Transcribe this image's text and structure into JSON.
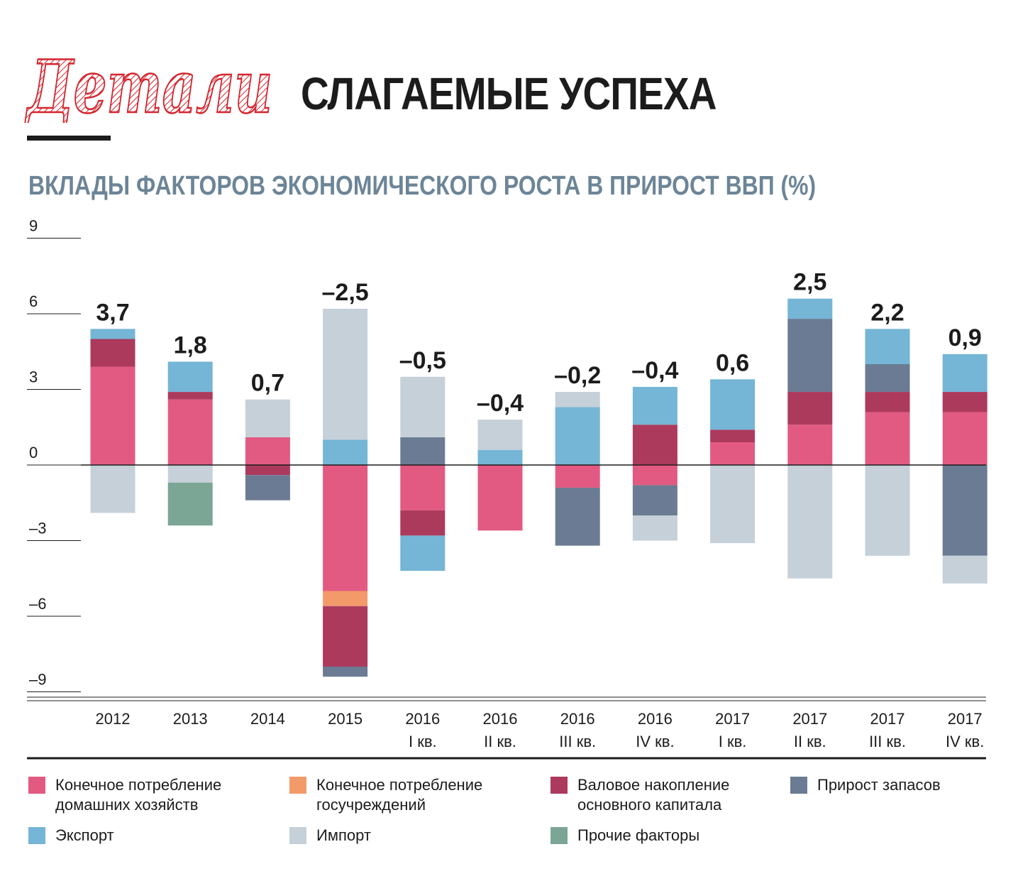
{
  "header": {
    "logo_text": "Детали",
    "title": "СЛАГАЕМЫЕ УСПЕХА",
    "subtitle": "ВКЛАДЫ ФАКТОРОВ ЭКОНОМИЧЕСКОГО РОСТА В ПРИРОСТ ВВП (%)"
  },
  "colors": {
    "logo_red": "#d4262f",
    "title": "#1c1c1c",
    "subtitle": "#6c8597"
  },
  "chart_data": {
    "type": "bar",
    "stacked": true,
    "title": "ВКЛАДЫ ФАКТОРОВ ЭКОНОМИЧЕСКОГО РОСТА В ПРИРОСТ ВВП (%)",
    "ylim": [
      -9.5,
      9
    ],
    "yticks": [
      9,
      6,
      3,
      0,
      -3,
      -6,
      -9
    ],
    "ytick_labels": [
      "9",
      "6",
      "3",
      "0",
      "–3",
      "–6",
      "–9"
    ],
    "grid": false,
    "legend_position": "bottom",
    "categories": [
      "2012",
      "2013",
      "2014",
      "2015",
      "2016\nI кв.",
      "2016\nII кв.",
      "2016\nIII кв.",
      "2016\nIV кв.",
      "2017\nI кв.",
      "2017\nII кв.",
      "2017\nIII кв.",
      "2017\nIV кв."
    ],
    "totals": [
      3.7,
      1.8,
      0.7,
      -2.5,
      -0.5,
      -0.4,
      -0.2,
      -0.4,
      0.6,
      2.5,
      2.2,
      0.9
    ],
    "total_labels": [
      "3,7",
      "1,8",
      "0,7",
      "–2,5",
      "–0,5",
      "–0,4",
      "–0,2",
      "–0,4",
      "0,6",
      "2,5",
      "2,2",
      "0,9"
    ],
    "series": [
      {
        "name": "Конечное потребление\nдомашних хозяйств",
        "color": "#e25a82",
        "values": [
          3.9,
          2.6,
          1.1,
          -5.0,
          -1.8,
          -2.6,
          -0.9,
          -0.8,
          0.9,
          1.6,
          2.1,
          2.1
        ]
      },
      {
        "name": "Конечное потребление\nгосучреждений",
        "color": "#f39a6b",
        "values": [
          0,
          0,
          0,
          -0.6,
          0,
          0,
          0,
          0,
          0,
          0,
          0,
          0
        ]
      },
      {
        "name": "Валовое накопление\nосновного капитала",
        "color": "#ac3a5d",
        "values": [
          1.1,
          0.3,
          -0.4,
          -2.4,
          -1.0,
          0,
          0,
          1.6,
          0.5,
          1.3,
          0.8,
          0.8
        ]
      },
      {
        "name": "Прирост запасов",
        "color": "#6b7b93",
        "values": [
          0,
          0,
          -1.0,
          -0.4,
          1.1,
          0,
          -2.3,
          -1.2,
          0,
          2.9,
          1.1,
          -3.6
        ]
      },
      {
        "name": "Экспорт",
        "color": "#75b5d6",
        "values": [
          0.4,
          1.2,
          0,
          1.0,
          -1.4,
          0.6,
          2.3,
          1.5,
          2.0,
          0.8,
          1.4,
          1.5
        ]
      },
      {
        "name": "Импорт",
        "color": "#c5d0d9",
        "values": [
          -1.9,
          -0.7,
          1.5,
          5.2,
          2.4,
          1.2,
          0.6,
          -1.0,
          -3.1,
          -4.5,
          -3.6,
          -1.1
        ]
      },
      {
        "name": "Прочие факторы",
        "color": "#7ba594",
        "values": [
          0,
          -1.7,
          0,
          0,
          0,
          0,
          0,
          0,
          0,
          0,
          0,
          0
        ]
      }
    ]
  }
}
